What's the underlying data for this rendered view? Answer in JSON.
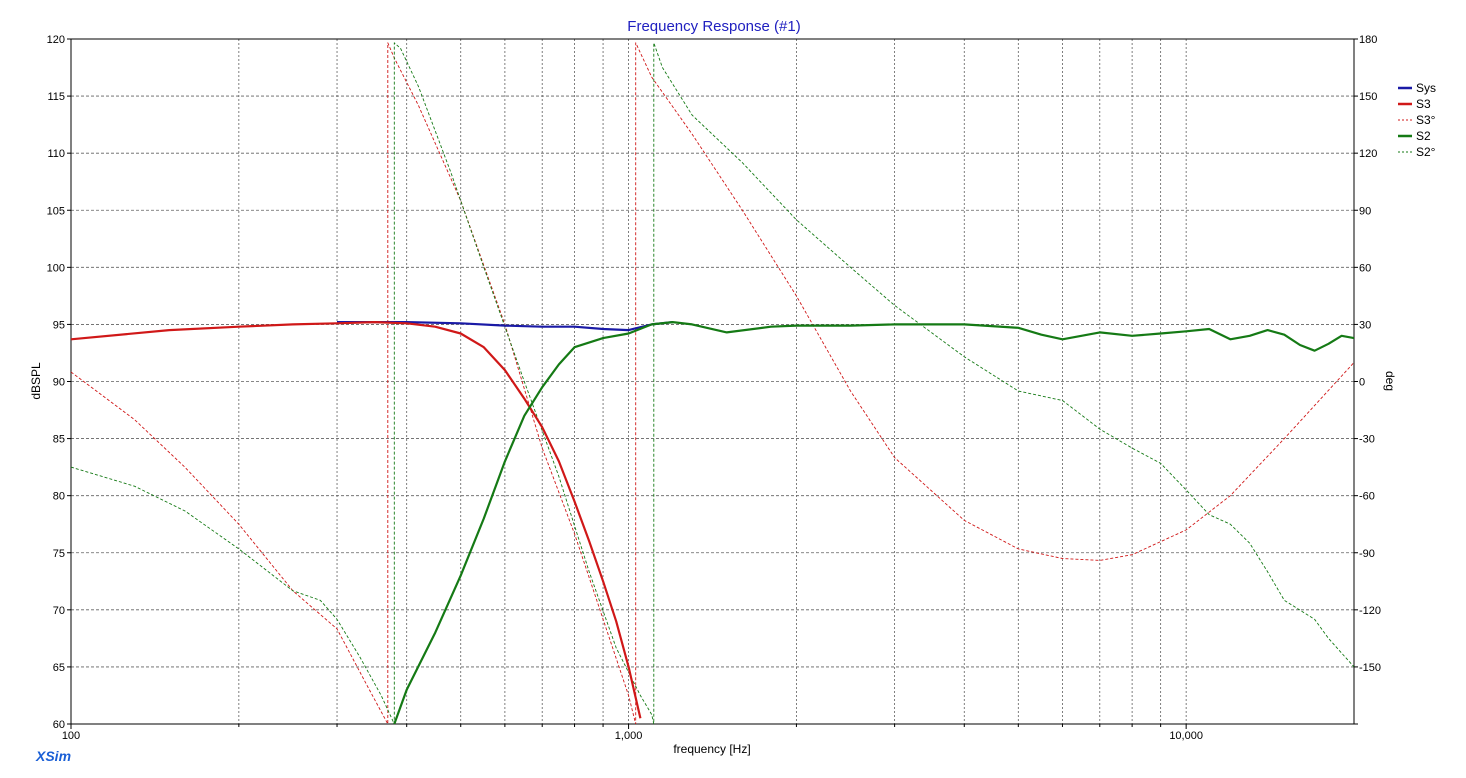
{
  "app": {
    "brand": "XSim"
  },
  "colors": {
    "title": "#2020c0",
    "sys": "#1a1aa6",
    "s3": "#d01818",
    "s2": "#157a15",
    "brand": "#1a5fd6",
    "grid": "#606060"
  },
  "chart_data": {
    "type": "line",
    "title": "Frequency Response (#1)",
    "xlabel": "frequency [Hz]",
    "ylabel": "dBSPL",
    "y2label": "deg",
    "xscale": "log",
    "xlim": [
      100,
      20000
    ],
    "ylim": [
      60,
      120
    ],
    "y2lim": [
      -180,
      180
    ],
    "grid": true,
    "legend": "right",
    "x_major_ticks": [
      {
        "value": 100,
        "label": "100"
      },
      {
        "value": 1000,
        "label": "1,000"
      },
      {
        "value": 10000,
        "label": "10,000"
      }
    ],
    "x_minor_ticks": [
      200,
      300,
      400,
      500,
      600,
      700,
      800,
      900,
      2000,
      3000,
      4000,
      5000,
      6000,
      7000,
      8000,
      9000
    ],
    "y_ticks": [
      "60",
      "65",
      "70",
      "75",
      "80",
      "85",
      "90",
      "95",
      "100",
      "105",
      "110",
      "115",
      "120"
    ],
    "y2_ticks": [
      "",
      "-150",
      "-120",
      "-90",
      "-60",
      "-30",
      "0",
      "30",
      "60",
      "90",
      "120",
      "150",
      "180"
    ],
    "series": [
      {
        "name": "Sys",
        "axis": "left",
        "style": "solid",
        "color": "#1a1aa6",
        "x": [
          300,
          400,
          500,
          600,
          700,
          800,
          900,
          1000,
          1100,
          1200
        ],
        "y": [
          95.2,
          95.2,
          95.1,
          94.9,
          94.8,
          94.8,
          94.6,
          94.5,
          95.0,
          95.2
        ]
      },
      {
        "name": "S3",
        "axis": "left",
        "style": "solid",
        "color": "#d01818",
        "x": [
          100,
          150,
          200,
          250,
          300,
          350,
          400,
          450,
          500,
          550,
          600,
          650,
          700,
          750,
          800,
          850,
          900,
          950,
          1000,
          1050
        ],
        "y": [
          93.7,
          94.5,
          94.8,
          95.0,
          95.1,
          95.2,
          95.1,
          94.8,
          94.2,
          93.0,
          91.0,
          88.5,
          86.0,
          83.0,
          79.5,
          76.0,
          72.5,
          69.0,
          65.0,
          60.5
        ]
      },
      {
        "name": "S3°",
        "axis": "right",
        "style": "dashed",
        "color": "#d01818",
        "x": [
          100,
          130,
          160,
          200,
          250,
          300,
          340,
          370,
          370,
          380,
          420,
          500,
          600,
          700,
          800,
          900,
          1000,
          1030,
          1030,
          1100,
          1300,
          1600,
          2000,
          2500,
          3000,
          4000,
          5000,
          6000,
          7000,
          8000,
          10000,
          12000,
          15000,
          20000
        ],
        "y": [
          5,
          -20,
          -45,
          -75,
          -110,
          -130,
          -160,
          -180,
          178,
          170,
          145,
          95,
          30,
          -35,
          -80,
          -125,
          -165,
          -180,
          178,
          160,
          130,
          90,
          45,
          -5,
          -40,
          -73,
          -88,
          -93,
          -94,
          -91,
          -78,
          -60,
          -30,
          10
        ]
      },
      {
        "name": "S2",
        "axis": "left",
        "style": "solid",
        "color": "#157a15",
        "x": [
          380,
          400,
          450,
          500,
          550,
          600,
          650,
          700,
          750,
          800,
          900,
          1000,
          1100,
          1200,
          1300,
          1500,
          1800,
          2000,
          2500,
          3000,
          4000,
          5000,
          5500,
          6000,
          7000,
          8000,
          9000,
          10000,
          11000,
          12000,
          13000,
          14000,
          15000,
          16000,
          17000,
          18000,
          19000,
          20000
        ],
        "y": [
          60,
          63,
          68,
          73,
          78,
          83,
          87,
          89.5,
          91.5,
          93,
          93.8,
          94.2,
          95.0,
          95.2,
          95.0,
          94.3,
          94.8,
          94.9,
          94.9,
          95.0,
          95.0,
          94.7,
          94.1,
          93.7,
          94.3,
          94.0,
          94.2,
          94.4,
          94.6,
          93.7,
          94.0,
          94.5,
          94.1,
          93.2,
          92.7,
          93.3,
          94.0,
          93.8
        ]
      },
      {
        "name": "S2°",
        "axis": "right",
        "style": "dashed",
        "color": "#157a15",
        "x": [
          100,
          130,
          160,
          200,
          250,
          280,
          300,
          330,
          360,
          380,
          380,
          390,
          420,
          480,
          550,
          650,
          750,
          850,
          950,
          1050,
          1100,
          1110,
          1110,
          1150,
          1300,
          1600,
          2000,
          2500,
          3000,
          4000,
          5000,
          6000,
          7000,
          8000,
          9000,
          10000,
          11000,
          12000,
          13000,
          14000,
          15000,
          17000,
          18000,
          20000
        ],
        "y": [
          -45,
          -55,
          -68,
          -88,
          -110,
          -115,
          -125,
          -145,
          -165,
          -180,
          178,
          175,
          155,
          110,
          60,
          0,
          -50,
          -100,
          -140,
          -165,
          -175,
          -180,
          178,
          165,
          140,
          115,
          85,
          60,
          40,
          13,
          -5,
          -10,
          -25,
          -35,
          -43,
          -57,
          -70,
          -75,
          -85,
          -100,
          -115,
          -125,
          -135,
          -150
        ]
      }
    ]
  }
}
